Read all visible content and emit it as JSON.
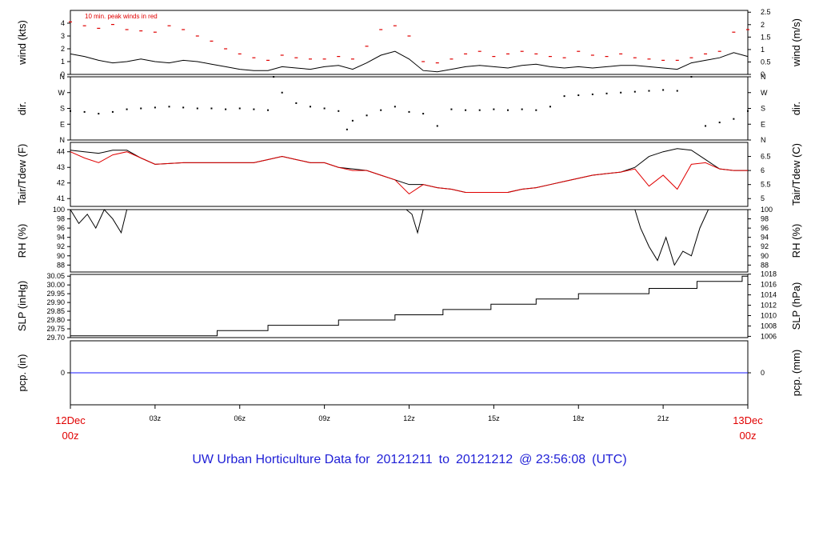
{
  "title": {
    "prefix": "UW Urban Horticulture Data for",
    "from": "20121211",
    "to_word": "to",
    "to": "20121212",
    "at": "@ 23:56:08",
    "tz": "(UTC)"
  },
  "colors": {
    "series": "#000000",
    "peak": "#e00000",
    "dewpoint": "#e00000",
    "precip": "#1a1aff",
    "date_labels": "#e00000",
    "title": "#1f1fd6"
  },
  "x_axis": {
    "ticks": [
      {
        "label": "03z",
        "hour": 3
      },
      {
        "label": "06z",
        "hour": 6
      },
      {
        "label": "09z",
        "hour": 9
      },
      {
        "label": "12z",
        "hour": 12
      },
      {
        "label": "15z",
        "hour": 15
      },
      {
        "label": "18z",
        "hour": 18
      },
      {
        "label": "21z",
        "hour": 21
      }
    ],
    "start": {
      "line1": "12Dec",
      "line2": "00z"
    },
    "end": {
      "line1": "13Dec",
      "line2": "00z"
    }
  },
  "chart_data": [
    {
      "type": "line",
      "ylabel_left": "wind (kts)",
      "ylabel_right": "wind (m/s)",
      "annotation": "10 min. peak winds in red",
      "ylim": [
        0,
        5
      ],
      "yticks_left": [
        "0",
        "1",
        "2",
        "3",
        "4"
      ],
      "yticks_right": [
        "0",
        "0.5",
        "1",
        "1.5",
        "2",
        "2.5"
      ],
      "series": [
        {
          "key": "wind",
          "x": [
            0,
            0.5,
            1,
            1.5,
            2,
            2.5,
            3,
            3.5,
            4,
            4.5,
            5,
            5.5,
            6,
            6.5,
            7,
            7.5,
            8,
            8.5,
            9,
            9.5,
            10,
            10.5,
            11,
            11.5,
            12,
            12.5,
            13,
            13.5,
            14,
            14.5,
            15,
            15.5,
            16,
            16.5,
            17,
            17.5,
            18,
            18.5,
            19,
            19.5,
            20,
            20.5,
            21,
            21.5,
            22,
            22.5,
            23,
            23.5,
            24
          ],
          "values": [
            1.6,
            1.4,
            1.1,
            0.9,
            1.0,
            1.2,
            1.0,
            0.9,
            1.1,
            1.0,
            0.8,
            0.6,
            0.4,
            0.3,
            0.3,
            0.6,
            0.5,
            0.4,
            0.6,
            0.7,
            0.4,
            0.9,
            1.5,
            1.8,
            1.2,
            0.3,
            0.2,
            0.4,
            0.6,
            0.7,
            0.6,
            0.5,
            0.7,
            0.8,
            0.6,
            0.5,
            0.6,
            0.5,
            0.6,
            0.7,
            0.7,
            0.6,
            0.5,
            0.4,
            0.9,
            1.1,
            1.3,
            1.7,
            1.4
          ]
        },
        {
          "key": "peak",
          "x": [
            0,
            0.5,
            1,
            1.5,
            2,
            2.5,
            3,
            3.5,
            4,
            4.5,
            5,
            5.5,
            6,
            6.5,
            7,
            7.5,
            8,
            8.5,
            9,
            9.5,
            10,
            10.5,
            11,
            11.5,
            12,
            12.5,
            13,
            13.5,
            14,
            14.5,
            15,
            15.5,
            16,
            16.5,
            17,
            17.5,
            18,
            18.5,
            19,
            19.5,
            20,
            20.5,
            21,
            21.5,
            22,
            22.5,
            23,
            23.5,
            24
          ],
          "values": [
            4.1,
            3.8,
            3.6,
            3.9,
            3.5,
            3.4,
            3.3,
            3.8,
            3.5,
            3.0,
            2.6,
            2.0,
            1.6,
            1.3,
            1.1,
            1.5,
            1.3,
            1.2,
            1.2,
            1.4,
            1.2,
            2.2,
            3.5,
            3.8,
            3.0,
            1.0,
            0.9,
            1.2,
            1.6,
            1.8,
            1.4,
            1.6,
            1.8,
            1.6,
            1.4,
            1.3,
            1.8,
            1.5,
            1.4,
            1.6,
            1.3,
            1.2,
            1.1,
            1.1,
            1.3,
            1.6,
            1.8,
            3.3,
            3.5
          ]
        }
      ]
    },
    {
      "type": "scatter",
      "ylabel_left": "dir.",
      "ylabel_right": "dir.",
      "ylim": [
        0,
        360
      ],
      "yticks_left": [
        "N",
        "E",
        "S",
        "W",
        "N"
      ],
      "yticks_right": [
        "N",
        "E",
        "S",
        "W",
        "N"
      ],
      "series": [
        {
          "key": "dir",
          "x": [
            0,
            0.5,
            1,
            1.5,
            2,
            2.5,
            3,
            3.5,
            4,
            4.5,
            5,
            5.5,
            6,
            6.5,
            7,
            7.2,
            7.5,
            8,
            8.5,
            9,
            9.5,
            9.8,
            10,
            10.5,
            11,
            11.5,
            12,
            12.5,
            13,
            13.5,
            14,
            14.5,
            15,
            15.5,
            16,
            16.5,
            17,
            17.5,
            18,
            18.5,
            19,
            19.5,
            20,
            20.5,
            21,
            21.5,
            22,
            22.5,
            23,
            23.5,
            24
          ],
          "values": [
            165,
            160,
            150,
            160,
            175,
            180,
            185,
            190,
            185,
            180,
            180,
            175,
            180,
            175,
            170,
            360,
            270,
            210,
            190,
            180,
            165,
            60,
            110,
            140,
            170,
            190,
            160,
            150,
            80,
            175,
            170,
            170,
            175,
            170,
            175,
            170,
            190,
            250,
            255,
            260,
            265,
            270,
            275,
            280,
            285,
            280,
            360,
            80,
            100,
            120,
            165
          ]
        }
      ]
    },
    {
      "type": "line",
      "ylabel_left": "Tair/Tdew (F)",
      "ylabel_right": "Tair/Tdew (C)",
      "ylim": [
        40.5,
        44.6
      ],
      "yticks_left": [
        "41",
        "42",
        "43",
        "44"
      ],
      "yticks_right": [
        "5",
        "5.5",
        "6",
        "6.5"
      ],
      "series": [
        {
          "key": "tair",
          "x": [
            0,
            0.5,
            1,
            1.5,
            2,
            2.5,
            3,
            4,
            5,
            6,
            6.5,
            7,
            7.5,
            8,
            8.5,
            9,
            9.5,
            10,
            10.5,
            11,
            11.5,
            12,
            12.5,
            13,
            13.5,
            14,
            14.5,
            15,
            15.5,
            16,
            16.5,
            17,
            17.5,
            18,
            18.5,
            19,
            19.5,
            20,
            20.5,
            21,
            21.5,
            22,
            22.5,
            23,
            23.5,
            24
          ],
          "values": [
            44.1,
            44.0,
            43.9,
            44.1,
            44.1,
            43.6,
            43.2,
            43.3,
            43.3,
            43.3,
            43.3,
            43.5,
            43.7,
            43.5,
            43.3,
            43.3,
            43.0,
            42.9,
            42.8,
            42.5,
            42.2,
            41.9,
            41.9,
            41.7,
            41.6,
            41.4,
            41.4,
            41.4,
            41.4,
            41.6,
            41.7,
            41.9,
            42.1,
            42.3,
            42.5,
            42.6,
            42.7,
            43.0,
            43.7,
            44.0,
            44.2,
            44.1,
            43.5,
            42.9,
            42.8,
            42.8
          ]
        },
        {
          "key": "tdew",
          "x": [
            0,
            0.5,
            1,
            1.5,
            2,
            2.5,
            3,
            4,
            5,
            6,
            6.5,
            7,
            7.5,
            8,
            8.5,
            9,
            9.5,
            10,
            10.5,
            11,
            11.5,
            12,
            12.5,
            13,
            13.5,
            14,
            14.5,
            15,
            15.5,
            16,
            16.5,
            17,
            17.5,
            18,
            18.5,
            19,
            19.5,
            20,
            20.5,
            21,
            21.5,
            22,
            22.5,
            23,
            23.5,
            24
          ],
          "values": [
            44.0,
            43.6,
            43.3,
            43.8,
            44.0,
            43.6,
            43.2,
            43.3,
            43.3,
            43.3,
            43.3,
            43.5,
            43.7,
            43.5,
            43.3,
            43.3,
            43.0,
            42.8,
            42.8,
            42.5,
            42.2,
            41.3,
            41.9,
            41.7,
            41.6,
            41.4,
            41.4,
            41.4,
            41.4,
            41.6,
            41.7,
            41.9,
            42.1,
            42.3,
            42.5,
            42.6,
            42.7,
            42.9,
            41.8,
            42.5,
            41.6,
            43.2,
            43.3,
            42.9,
            42.8,
            42.8
          ]
        }
      ]
    },
    {
      "type": "line",
      "ylabel_left": "RH (%)",
      "ylabel_right": "RH (%)",
      "ylim": [
        86.5,
        100
      ],
      "yticks_left": [
        "88",
        "90",
        "92",
        "94",
        "96",
        "98",
        "100"
      ],
      "yticks_right": [
        "88",
        "90",
        "92",
        "94",
        "96",
        "98",
        "100"
      ],
      "series": [
        {
          "key": "rh",
          "x": [
            0,
            0.3,
            0.6,
            0.9,
            1.2,
            1.5,
            1.8,
            2.0,
            2.5,
            11.9,
            12.1,
            12.3,
            12.5,
            20.0,
            20.2,
            20.5,
            20.8,
            21.1,
            21.4,
            21.7,
            22.0,
            22.3,
            22.6,
            23,
            24
          ],
          "values": [
            100,
            97,
            99,
            96,
            100,
            98,
            95,
            100,
            100,
            100,
            99,
            95,
            100,
            100,
            96,
            92,
            89,
            94,
            88,
            91,
            90,
            96,
            100,
            100,
            100
          ]
        }
      ]
    },
    {
      "type": "line",
      "ylabel_left": "SLP (inHg)",
      "ylabel_right": "SLP (hPa)",
      "ylim": [
        29.7,
        30.06
      ],
      "yticks_left": [
        "29.70",
        "29.75",
        "29.80",
        "29.85",
        "29.90",
        "29.95",
        "30.00",
        "30.05"
      ],
      "yticks_right": [
        "1006",
        "1008",
        "1010",
        "1012",
        "1014",
        "1016",
        "1018"
      ],
      "series": [
        {
          "key": "slp",
          "x": [
            0,
            5.0,
            5.2,
            7.0,
            9.5,
            11.5,
            13.2,
            14.9,
            16.5,
            18.0,
            20.5,
            22.2,
            23.8,
            24
          ],
          "values": [
            29.71,
            29.71,
            29.74,
            29.77,
            29.8,
            29.83,
            29.86,
            29.89,
            29.92,
            29.95,
            29.98,
            30.02,
            30.05,
            30.05
          ]
        }
      ]
    },
    {
      "type": "line",
      "ylabel_left": "pcp. (in)",
      "ylabel_right": "pcp. (mm)",
      "ylim": [
        -1,
        1
      ],
      "yticks_left": [
        "0"
      ],
      "yticks_right": [
        "0"
      ],
      "series": [
        {
          "key": "pcp",
          "x": [
            0,
            24
          ],
          "values": [
            0,
            0
          ]
        }
      ]
    }
  ]
}
